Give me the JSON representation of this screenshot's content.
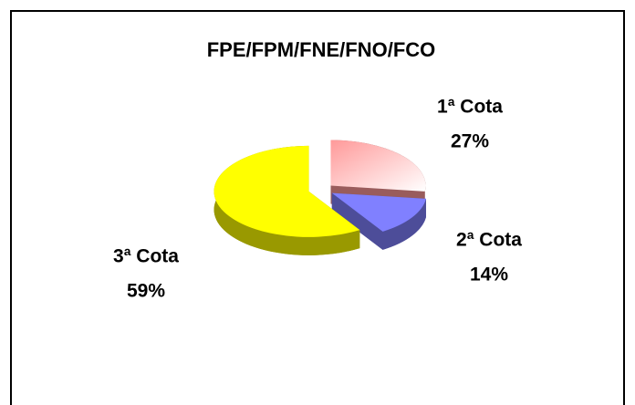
{
  "chart_data": {
    "type": "pie",
    "title": "FPE/FPM/FNE/FNO/FCO",
    "categories": [
      "1ª Cota",
      "2ª Cota",
      "3ª Cota"
    ],
    "values": [
      27,
      14,
      59
    ],
    "value_labels": [
      "27%",
      "14%",
      "59%"
    ],
    "colors": [
      "#ff9999",
      "#8080ff",
      "#ffff00"
    ]
  }
}
